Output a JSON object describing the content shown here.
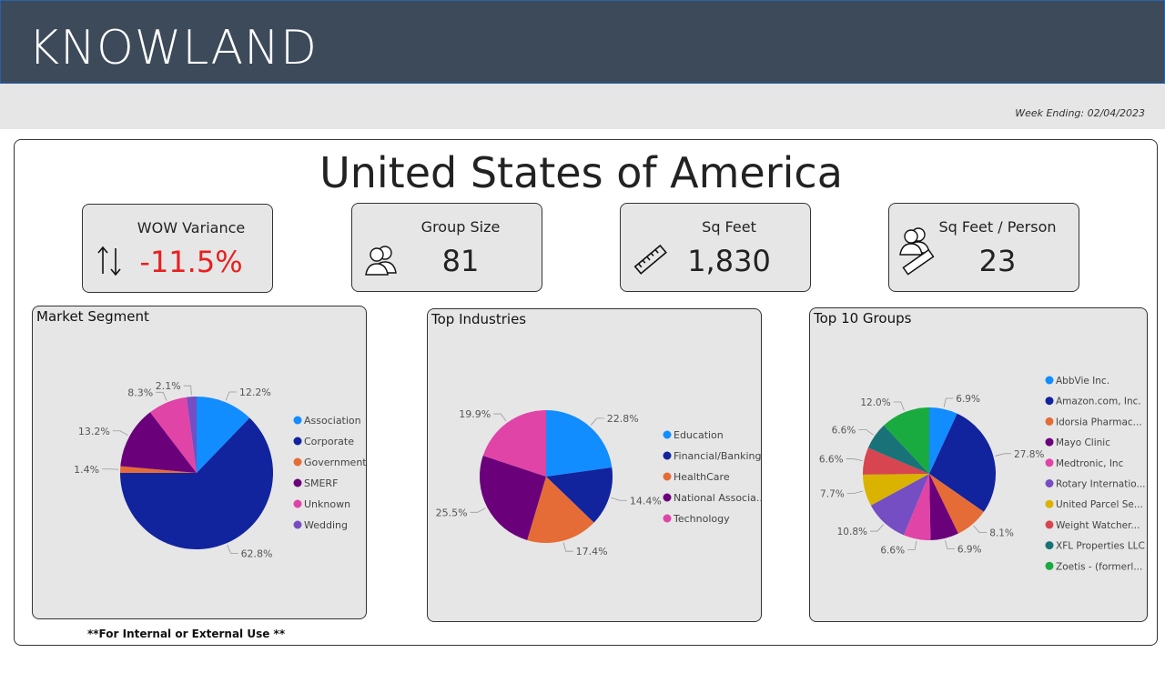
{
  "header": {
    "logo": "KNOWLAND",
    "week_ending": "Week Ending: 02/04/2023"
  },
  "page_title": "United States of America",
  "kpis": {
    "wow": {
      "label": "WOW Variance",
      "value": "-11.5%",
      "icon": "up-down-arrows-icon"
    },
    "group": {
      "label": "Group Size",
      "value": "81",
      "icon": "people-icon"
    },
    "sqft": {
      "label": "Sq Feet",
      "value": "1,830",
      "icon": "ruler-icon"
    },
    "sqpp": {
      "label": "Sq Feet / Person",
      "value": "23",
      "icon": "people-ruler-icon"
    }
  },
  "footer_note": "**For Internal or External Use **",
  "chart_data": [
    {
      "type": "pie",
      "title": "Market Segment",
      "categories": [
        "Association",
        "Corporate",
        "Government",
        "SMERF",
        "Unknown",
        "Wedding"
      ],
      "values": [
        12.2,
        62.8,
        1.4,
        13.2,
        8.3,
        2.1
      ],
      "labels": [
        "12.2%",
        "62.8%",
        "1.4%",
        "13.2%",
        "8.3%",
        "2.1%"
      ],
      "colors": [
        "#118dff",
        "#12239e",
        "#e66c37",
        "#6b007b",
        "#e044a7",
        "#744ec2"
      ],
      "legend": "right"
    },
    {
      "type": "pie",
      "title": "Top Industries",
      "categories": [
        "Education",
        "Financial/Banking",
        "HealthCare",
        "National Associa...",
        "Technology"
      ],
      "values": [
        22.8,
        14.4,
        17.4,
        25.5,
        19.9
      ],
      "labels": [
        "22.8%",
        "14.4%",
        "17.4%",
        "25.5%",
        "19.9%"
      ],
      "colors": [
        "#118dff",
        "#12239e",
        "#e66c37",
        "#6b007b",
        "#e044a7"
      ],
      "legend": "right"
    },
    {
      "type": "pie",
      "title": "Top 10 Groups",
      "categories": [
        "AbbVie Inc.",
        "Amazon.com, Inc.",
        "Idorsia Pharmac...",
        "Mayo Clinic",
        "Medtronic, Inc",
        "Rotary Internatio...",
        "United Parcel Se...",
        "Weight Watcher...",
        "XFL Properties LLC",
        "Zoetis - (formerl..."
      ],
      "values": [
        6.9,
        27.8,
        8.1,
        6.9,
        6.6,
        10.8,
        7.7,
        6.6,
        6.6,
        12.0
      ],
      "labels": [
        "6.9%",
        "27.8%",
        "8.1%",
        "6.9%",
        "6.6%",
        "10.8%",
        "7.7%",
        "6.6%",
        "6.6%",
        "12.0%"
      ],
      "colors": [
        "#118dff",
        "#12239e",
        "#e66c37",
        "#6b007b",
        "#e044a7",
        "#744ec2",
        "#d9b300",
        "#d64550",
        "#197278",
        "#1aab40"
      ],
      "legend": "right"
    }
  ]
}
